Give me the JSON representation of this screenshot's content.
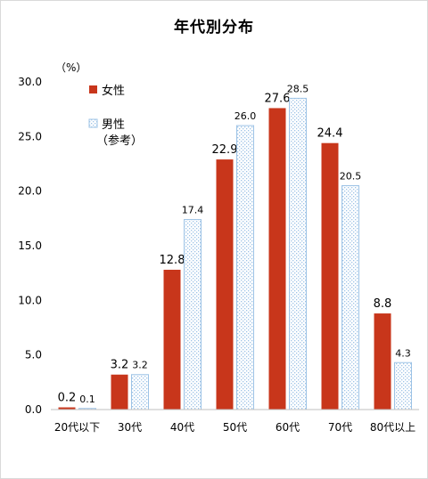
{
  "chart_data": {
    "type": "bar",
    "title": "年代別分布",
    "unit_label": "（%）",
    "categories": [
      "20代以下",
      "30代",
      "40代",
      "50代",
      "60代",
      "70代",
      "80代以上"
    ],
    "series": [
      {
        "name": "女性",
        "values": [
          0.2,
          3.2,
          12.8,
          22.9,
          27.6,
          24.4,
          8.8
        ],
        "labels": [
          "0.2",
          "3.2",
          "12.8",
          "22.9",
          "27.6",
          "24.4",
          "8.8"
        ],
        "color": "#c8361b"
      },
      {
        "name": "男性（参考）",
        "name_lines": [
          "男性",
          "（参考）"
        ],
        "values": [
          0.1,
          3.2,
          17.4,
          26.0,
          28.5,
          20.5,
          4.3
        ],
        "labels": [
          "0.1",
          "3.2",
          "17.4",
          "26.0",
          "28.5",
          "20.5",
          "4.3"
        ],
        "color": "#9dc3e6",
        "fill": "dotted"
      }
    ],
    "ylim": [
      0,
      30
    ],
    "yticks": [
      "0.0",
      "5.0",
      "10.0",
      "15.0",
      "20.0",
      "25.0",
      "30.0"
    ],
    "grid": false,
    "legend_position": "top-left"
  }
}
